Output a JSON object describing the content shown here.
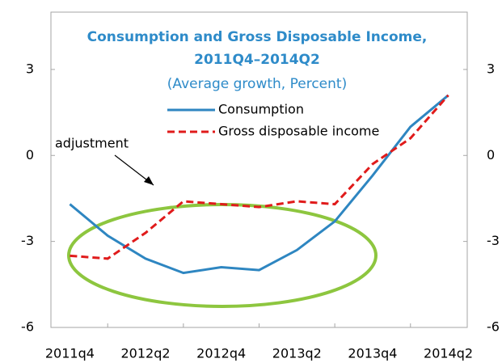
{
  "chart_data": {
    "type": "line",
    "title": "Consumption and Gross Disposable Income,",
    "title_line2": "2011Q4–2014Q2",
    "subtitle": "(Average growth, Percent)",
    "annotation": "adjustment",
    "categories": [
      "2011q4",
      null,
      "2012q2",
      null,
      "2012q4",
      null,
      "2013q2",
      null,
      "2013q4",
      null,
      "2014q2"
    ],
    "series": [
      {
        "name": "Consumption",
        "color": "#2e86c1",
        "linestyle": "solid",
        "values": [
          -1.7,
          -2.8,
          -3.6,
          -4.1,
          -3.9,
          -4.0,
          -3.3,
          -2.3,
          -0.7,
          1.0,
          2.1
        ]
      },
      {
        "name": "Gross disposable income",
        "color": "#e01b1b",
        "linestyle": "dashed",
        "values": [
          -3.5,
          -3.6,
          -2.7,
          -1.6,
          -1.7,
          -1.8,
          -1.6,
          -1.7,
          -0.3,
          0.6,
          2.1
        ]
      }
    ],
    "ylim": [
      -6,
      5
    ],
    "yticks": [
      -6,
      -3,
      0,
      3
    ],
    "y2lim": [
      -6,
      5
    ],
    "y2ticks": [
      -6,
      -3,
      0,
      3
    ],
    "grid": false
  }
}
